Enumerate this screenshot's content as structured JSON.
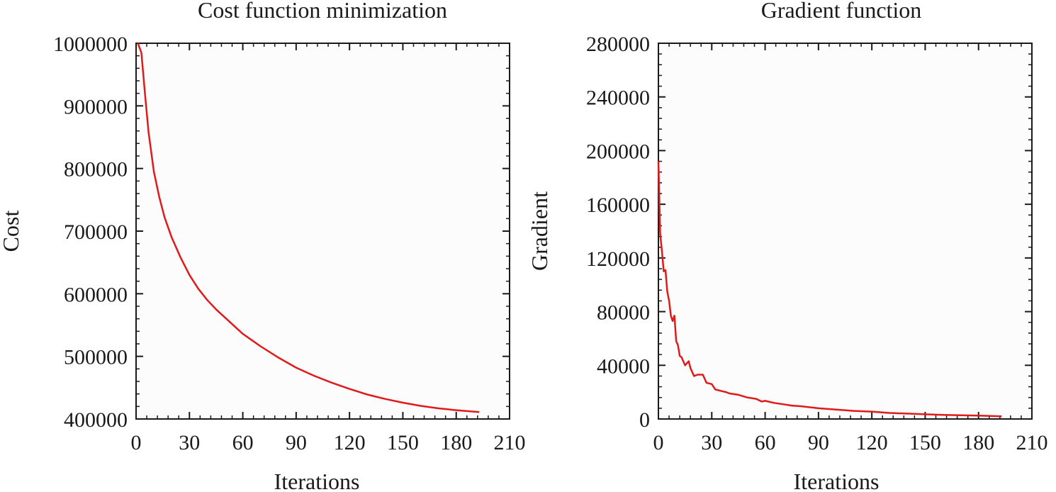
{
  "chart_data": [
    {
      "type": "line",
      "title": "Cost function minimization",
      "xlabel": "Iterations",
      "ylabel": "Cost",
      "xlim": [
        0,
        210
      ],
      "ylim": [
        400000,
        1000000
      ],
      "xticks": [
        "0",
        "30",
        "60",
        "90",
        "120",
        "150",
        "180",
        "210"
      ],
      "yticks": [
        "400000",
        "500000",
        "600000",
        "700000",
        "800000",
        "900000",
        "1000000"
      ],
      "grid": false,
      "line_color": "#e01a1a",
      "series": [
        {
          "x": [
            1,
            3,
            5,
            7,
            10,
            13,
            16,
            20,
            25,
            30,
            35,
            40,
            45,
            50,
            55,
            60,
            65,
            70,
            80,
            90,
            100,
            110,
            120,
            130,
            140,
            150,
            160,
            170,
            180,
            193
          ],
          "values": [
            1000000,
            985000,
            920000,
            858000,
            795000,
            755000,
            722000,
            690000,
            658000,
            630000,
            608000,
            590000,
            575000,
            562000,
            549000,
            536000,
            526000,
            516000,
            498000,
            482000,
            469000,
            458000,
            448000,
            439000,
            432000,
            426000,
            421000,
            417000,
            414000,
            411000
          ]
        }
      ]
    },
    {
      "type": "line",
      "title": "Gradient function",
      "xlabel": "Iterations",
      "ylabel": "Gradient",
      "xlim": [
        0,
        210
      ],
      "ylim": [
        0,
        280000
      ],
      "xticks": [
        "0",
        "30",
        "60",
        "90",
        "120",
        "150",
        "180",
        "210"
      ],
      "yticks": [
        "0",
        "40000",
        "80000",
        "120000",
        "160000",
        "200000",
        "240000",
        "280000"
      ],
      "grid": false,
      "line_color": "#e01a1a",
      "series": [
        {
          "x": [
            0,
            1,
            2,
            3,
            4,
            5,
            6,
            7,
            8,
            9,
            10,
            11,
            12,
            13,
            15,
            17,
            18,
            20,
            22,
            25,
            27,
            30,
            32,
            35,
            38,
            40,
            45,
            50,
            55,
            58,
            60,
            65,
            70,
            75,
            80,
            90,
            100,
            110,
            120,
            130,
            140,
            150,
            160,
            170,
            180,
            193
          ],
          "values": [
            192000,
            138000,
            125000,
            110000,
            111000,
            95000,
            88000,
            77000,
            73000,
            77000,
            58000,
            55000,
            47000,
            46000,
            40000,
            43000,
            38000,
            32000,
            33000,
            33000,
            27000,
            26000,
            22000,
            21000,
            20000,
            19000,
            18000,
            16000,
            15000,
            13000,
            13500,
            12000,
            11000,
            10000,
            9500,
            8000,
            7000,
            6000,
            5500,
            4500,
            4000,
            3500,
            3000,
            2800,
            2500,
            2000
          ]
        }
      ]
    }
  ]
}
